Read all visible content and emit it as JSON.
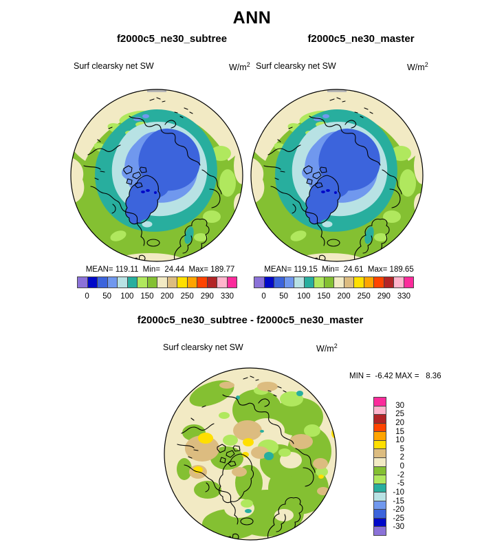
{
  "page": {
    "title": "ANN",
    "background": "#ffffff"
  },
  "panels": {
    "subtree": {
      "header": "f2000c5_ne30_subtree",
      "variable": "Surf clearsky net SW",
      "units_base": "W/m",
      "units_exp": "2",
      "stats": "MEAN= 119.11  Min=  24.44  Max= 189.77"
    },
    "master": {
      "header": "f2000c5_ne30_master",
      "variable": "Surf clearsky net SW",
      "units_base": "W/m",
      "units_exp": "2",
      "stats": "MEAN= 119.15  Min=  24.61  Max= 189.65"
    },
    "diff": {
      "header": "f2000c5_ne30_subtree - f2000c5_ne30_master",
      "variable": "Surf clearsky net SW",
      "units_base": "W/m",
      "units_exp": "2",
      "minmax": "MIN =  -6.42 MAX =   8.36"
    }
  },
  "colorbar": {
    "colors": [
      "#8B72D8",
      "#0008C8",
      "#3C64DC",
      "#7098EE",
      "#B8E2E4",
      "#28AE9E",
      "#B0E85E",
      "#84C032",
      "#F2EAC4",
      "#DCBC80",
      "#FFDF00",
      "#FFA400",
      "#FF4400",
      "#B22426",
      "#FFB4CC",
      "#FB2B9B"
    ],
    "ticks": [
      "0",
      "50",
      "100",
      "150",
      "200",
      "250",
      "290",
      "330"
    ]
  },
  "diff_colorbar": {
    "colors": [
      "#FB2B9B",
      "#FFB4CC",
      "#B22426",
      "#FF4400",
      "#FFA400",
      "#FFDF00",
      "#DCBC80",
      "#F2EAC4",
      "#84C032",
      "#B0E85E",
      "#28AE9E",
      "#B8E2E4",
      "#7098EE",
      "#3C64DC",
      "#0008C8",
      "#8B72D8"
    ],
    "labels": [
      "30",
      "25",
      "20",
      "15",
      "10",
      "5",
      "2",
      "0",
      "-2",
      "-5",
      "-10",
      "-15",
      "-20",
      "-25",
      "-30"
    ]
  },
  "chart_data": [
    {
      "type": "heatmap",
      "subtype": "polar-stereographic-map",
      "title": "f2000c5_ne30_subtree",
      "season": "ANN",
      "variable": "Surf clearsky net SW",
      "units": "W/m2",
      "mean": 119.11,
      "min": 24.44,
      "max": 189.77,
      "contour_levels_labeled": [
        0,
        50,
        100,
        150,
        200,
        250,
        290,
        330
      ],
      "legend_position": "below"
    },
    {
      "type": "heatmap",
      "subtype": "polar-stereographic-map",
      "title": "f2000c5_ne30_master",
      "season": "ANN",
      "variable": "Surf clearsky net SW",
      "units": "W/m2",
      "mean": 119.15,
      "min": 24.61,
      "max": 189.65,
      "contour_levels_labeled": [
        0,
        50,
        100,
        150,
        200,
        250,
        290,
        330
      ],
      "legend_position": "below"
    },
    {
      "type": "heatmap",
      "subtype": "polar-stereographic-map-difference",
      "title": "f2000c5_ne30_subtree - f2000c5_ne30_master",
      "season": "ANN",
      "variable": "Surf clearsky net SW",
      "units": "W/m2",
      "min": -6.42,
      "max": 8.36,
      "contour_levels_labeled": [
        30,
        25,
        20,
        15,
        10,
        5,
        2,
        0,
        -2,
        -5,
        -10,
        -15,
        -20,
        -25,
        -30
      ],
      "legend_position": "right"
    }
  ]
}
